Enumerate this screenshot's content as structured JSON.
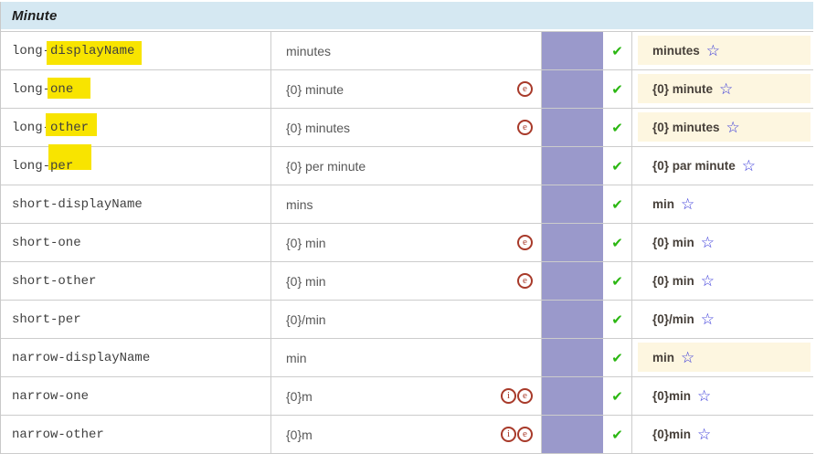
{
  "header": {
    "title": "Minute"
  },
  "icons": {
    "check": "✔",
    "star": "☆",
    "example": "e",
    "info": "i"
  },
  "colors": {
    "header_bg": "#d5e8f2",
    "vote_cell_purple": "#9a99cb",
    "winning_bg_cream": "#fdf6e0",
    "check_green": "#2bb712",
    "circle_icon_red": "#a83a2a",
    "star_blue": "#3232d8",
    "marker_yellow": "#f8e400"
  },
  "rows": [
    {
      "code_prefix": "long-",
      "code_suffix": "displayName",
      "highlight": "full",
      "english": "minutes",
      "english_icons": [],
      "approved": true,
      "translation": "minutes",
      "winning": true,
      "star": true
    },
    {
      "code_prefix": "long-",
      "code_suffix": "one",
      "highlight": "right",
      "english": "{0} minute",
      "english_icons": [
        "e"
      ],
      "approved": true,
      "translation": "{0} minute",
      "winning": true,
      "star": true
    },
    {
      "code_prefix": "long-",
      "code_suffix": "other",
      "highlight": "up",
      "english": "{0} minutes",
      "english_icons": [
        "e"
      ],
      "approved": true,
      "translation": "{0} minutes",
      "winning": true,
      "star": true
    },
    {
      "code_prefix": "long-",
      "code_suffix": "per",
      "highlight": "above",
      "english": "{0} per minute",
      "english_icons": [],
      "approved": true,
      "translation": "{0} par minute",
      "winning": false,
      "star": true
    },
    {
      "code_prefix": "short-displayName",
      "code_suffix": "",
      "highlight": null,
      "english": "mins",
      "english_icons": [],
      "approved": true,
      "translation": "min",
      "winning": false,
      "star": true
    },
    {
      "code_prefix": "short-one",
      "code_suffix": "",
      "highlight": null,
      "english": "{0} min",
      "english_icons": [
        "e"
      ],
      "approved": true,
      "translation": "{0} min",
      "winning": false,
      "star": true
    },
    {
      "code_prefix": "short-other",
      "code_suffix": "",
      "highlight": null,
      "english": "{0} min",
      "english_icons": [
        "e"
      ],
      "approved": true,
      "translation": "{0} min",
      "winning": false,
      "star": true
    },
    {
      "code_prefix": "short-per",
      "code_suffix": "",
      "highlight": null,
      "english": "{0}/min",
      "english_icons": [],
      "approved": true,
      "translation": "{0}/min",
      "winning": false,
      "star": true
    },
    {
      "code_prefix": "narrow-displayName",
      "code_suffix": "",
      "highlight": null,
      "english": "min",
      "english_icons": [],
      "approved": true,
      "translation": "min",
      "winning": true,
      "star": true
    },
    {
      "code_prefix": "narrow-one",
      "code_suffix": "",
      "highlight": null,
      "english": "{0}m",
      "english_icons": [
        "i",
        "e"
      ],
      "approved": true,
      "translation": "{0}min",
      "winning": false,
      "star": true
    },
    {
      "code_prefix": "narrow-other",
      "code_suffix": "",
      "highlight": null,
      "english": "{0}m",
      "english_icons": [
        "i",
        "e"
      ],
      "approved": true,
      "translation": "{0}min",
      "winning": false,
      "star": true
    }
  ]
}
